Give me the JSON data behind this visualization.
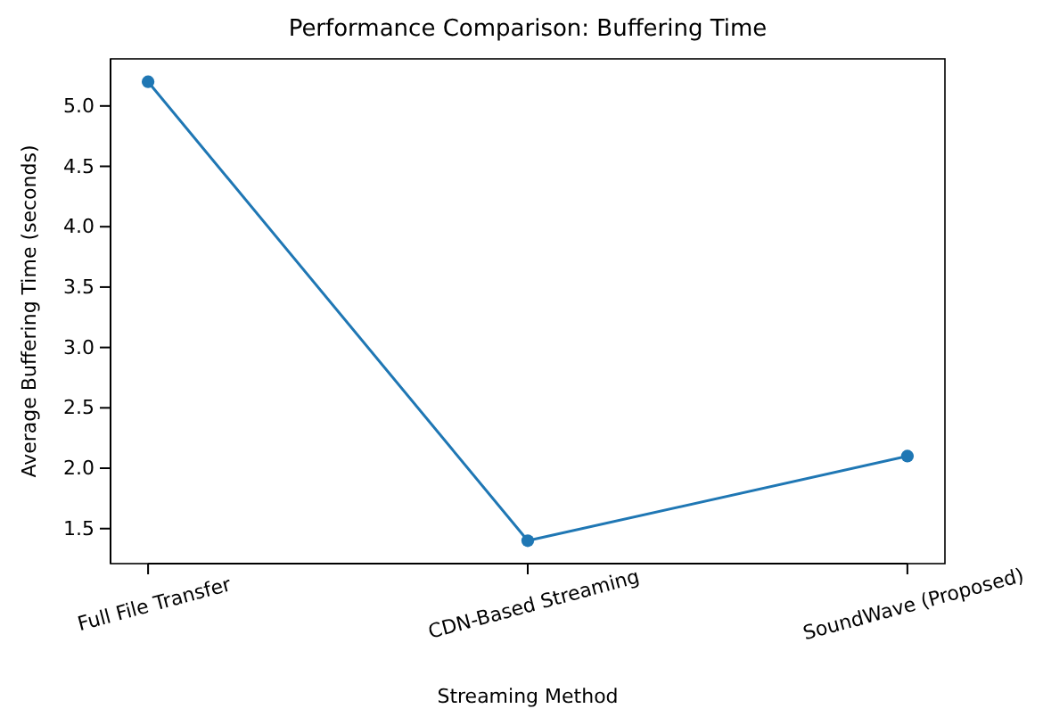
{
  "chart_data": {
    "type": "line",
    "title": "Performance Comparison: Buffering Time",
    "xlabel": "Streaming Method",
    "ylabel": "Average Buffering Time (seconds)",
    "categories": [
      "Full File Transfer",
      "CDN-Based Streaming",
      "SoundWave (Proposed)"
    ],
    "series": [
      {
        "color": "#1f77b4",
        "values": [
          5.2,
          1.4,
          2.1
        ]
      }
    ],
    "ylim": [
      1.21,
      5.39
    ],
    "yticks": [
      {
        "value": 1.5,
        "label": "1.5"
      },
      {
        "value": 2.0,
        "label": "2.0"
      },
      {
        "value": 2.5,
        "label": "2.5"
      },
      {
        "value": 3.0,
        "label": "3.0"
      },
      {
        "value": 3.5,
        "label": "3.5"
      },
      {
        "value": 4.0,
        "label": "4.0"
      },
      {
        "value": 4.5,
        "label": "4.5"
      },
      {
        "value": 5.0,
        "label": "5.0"
      }
    ],
    "marker": "circle",
    "line_style": "solid"
  }
}
